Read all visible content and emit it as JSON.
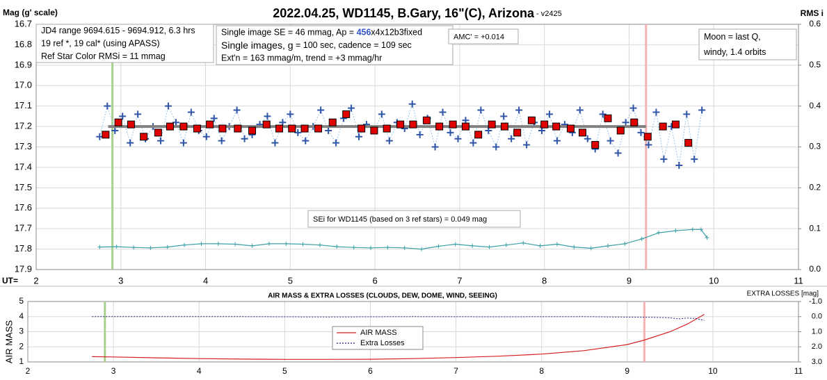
{
  "chart_data": [
    {
      "type": "line",
      "title": "2022.04.25, WD1145, B.Gary, 16\"(C), Arizona",
      "title_suffix": " - v2425",
      "y_label": "Mag (g' scale)",
      "y2_label": "RMS i",
      "x_label": "UT=",
      "xlim": [
        2,
        11
      ],
      "xticks": [
        2,
        3,
        4,
        5,
        6,
        7,
        8,
        9,
        10,
        11
      ],
      "ylim": [
        16.7,
        17.9
      ],
      "y_inverted": true,
      "yticks": [
        16.7,
        16.8,
        16.9,
        {
          "value": 17,
          "label": "17.0"
        },
        17.1,
        17.2,
        17.3,
        17.4,
        17.5,
        17.6,
        17.7,
        17.8,
        17.9
      ],
      "y2lim": [
        0,
        0.6
      ],
      "y2ticks": [
        {
          "value": 0,
          "label": "0.0"
        },
        0.1,
        0.2,
        0.3,
        0.4,
        0.5,
        0.6
      ],
      "grid": true,
      "vlines": [
        {
          "x": 2.9,
          "color": "#a9d18e"
        },
        {
          "x": 9.2,
          "color": "#f4b3b3"
        }
      ],
      "series": [
        {
          "color": "#2f55a8",
          "marker": "plus",
          "line": "dotted",
          "line_color": "#9dc3e6",
          "x": [
            2.75,
            2.84,
            2.93,
            3.02,
            3.11,
            3.2,
            3.29,
            3.38,
            3.47,
            3.56,
            3.65,
            3.74,
            3.83,
            3.92,
            4.01,
            4.1,
            4.19,
            4.28,
            4.37,
            4.46,
            4.55,
            4.64,
            4.73,
            4.82,
            4.91,
            5.0,
            5.09,
            5.18,
            5.27,
            5.36,
            5.45,
            5.54,
            5.63,
            5.72,
            5.81,
            5.9,
            5.99,
            6.08,
            6.17,
            6.26,
            6.35,
            6.44,
            6.53,
            6.62,
            6.71,
            6.8,
            6.89,
            6.98,
            7.07,
            7.16,
            7.25,
            7.34,
            7.43,
            7.52,
            7.61,
            7.7,
            7.79,
            7.88,
            7.97,
            8.06,
            8.15,
            8.24,
            8.33,
            8.42,
            8.51,
            8.6,
            8.69,
            8.78,
            8.87,
            8.96,
            9.05,
            9.14,
            9.23,
            9.32,
            9.41,
            9.5,
            9.59,
            9.68,
            9.77,
            9.86
          ],
          "values": [
            17.25,
            17.1,
            17.22,
            17.15,
            17.28,
            17.14,
            17.26,
            17.2,
            17.27,
            17.1,
            17.18,
            17.28,
            17.13,
            17.22,
            17.25,
            17.16,
            17.27,
            17.2,
            17.12,
            17.26,
            17.24,
            17.19,
            17.15,
            17.28,
            17.18,
            17.14,
            17.23,
            17.27,
            17.2,
            17.12,
            17.22,
            17.28,
            17.16,
            17.11,
            17.25,
            17.19,
            17.22,
            17.14,
            17.27,
            17.18,
            17.21,
            17.09,
            17.24,
            17.16,
            17.3,
            17.13,
            17.23,
            17.26,
            17.17,
            17.28,
            17.12,
            17.22,
            17.3,
            17.15,
            17.26,
            17.12,
            17.29,
            17.18,
            17.22,
            17.14,
            17.27,
            17.19,
            17.23,
            17.12,
            17.26,
            17.31,
            17.14,
            17.27,
            17.33,
            17.18,
            17.11,
            17.23,
            17.29,
            17.13,
            17.36,
            17.2,
            17.39,
            17.14,
            17.36,
            17.12
          ]
        },
        {
          "color": "#808080",
          "line": "solid",
          "line_width": 4,
          "x": [
            2.85,
            9.2
          ],
          "values": [
            17.2,
            17.2
          ]
        },
        {
          "color": "#e00000",
          "marker": "square",
          "x": [
            2.82,
            2.97,
            3.12,
            3.27,
            3.44,
            3.58,
            3.74,
            3.9,
            4.05,
            4.2,
            4.38,
            4.55,
            4.72,
            4.87,
            5.02,
            5.17,
            5.33,
            5.5,
            5.66,
            5.84,
            5.99,
            6.14,
            6.3,
            6.45,
            6.61,
            6.76,
            6.92,
            7.07,
            7.22,
            7.38,
            7.53,
            7.68,
            7.85,
            8.0,
            8.14,
            8.31,
            8.45,
            8.6,
            8.75,
            8.9,
            9.06,
            9.22,
            9.4,
            9.55,
            9.7
          ],
          "values": [
            17.24,
            17.18,
            17.19,
            17.25,
            17.23,
            17.2,
            17.2,
            17.21,
            17.19,
            17.21,
            17.21,
            17.22,
            17.19,
            17.21,
            17.21,
            17.21,
            17.21,
            17.18,
            17.14,
            17.21,
            17.22,
            17.21,
            17.19,
            17.19,
            17.17,
            17.2,
            17.19,
            17.2,
            17.24,
            17.19,
            17.2,
            17.23,
            17.17,
            17.19,
            17.2,
            17.21,
            17.23,
            17.29,
            17.16,
            17.22,
            17.18,
            17.25,
            17.2,
            17.19,
            17.28
          ]
        },
        {
          "color": "#3a9fa6",
          "marker": "small-plus",
          "line": "solid",
          "axis": "y2",
          "x": [
            2.75,
            2.95,
            3.15,
            3.35,
            3.55,
            3.75,
            3.95,
            4.15,
            4.35,
            4.55,
            4.75,
            4.95,
            5.15,
            5.35,
            5.55,
            5.75,
            5.95,
            6.15,
            6.35,
            6.55,
            6.75,
            6.95,
            7.15,
            7.35,
            7.55,
            7.75,
            7.95,
            8.15,
            8.35,
            8.55,
            8.75,
            8.95,
            9.15,
            9.35,
            9.55,
            9.75,
            9.85,
            9.92
          ],
          "values": [
            0.055,
            0.056,
            0.054,
            0.053,
            0.055,
            0.06,
            0.063,
            0.063,
            0.062,
            0.058,
            0.063,
            0.063,
            0.062,
            0.06,
            0.056,
            0.054,
            0.053,
            0.054,
            0.053,
            0.05,
            0.057,
            0.062,
            0.058,
            0.055,
            0.06,
            0.065,
            0.058,
            0.062,
            0.055,
            0.052,
            0.058,
            0.063,
            0.075,
            0.09,
            0.095,
            0.098,
            0.098,
            0.078
          ]
        }
      ],
      "annotations": [
        {
          "lines": [
            [
              "JD4 range 9694.615 - 9694.912, 6.3 hrs"
            ],
            [
              "19 ref *, 19 cal* (using APASS)"
            ],
            [
              "Ref Star Color RMSi = 11 mmag"
            ]
          ]
        },
        {
          "lines": [
            [
              "Single image SE = 46 mmag, Ap = ",
              "456",
              "x4x12b3fixed"
            ],
            [
              "Single images, g",
              " = 100 sec, cadence = 109 sec"
            ],
            [
              "Ext'n = 163 mmag/m, trend = +3 mmag/hr"
            ]
          ]
        },
        {
          "lines": [
            [
              "AMC' = +0.014"
            ]
          ]
        },
        {
          "lines": [
            [
              "Moon = last Q,"
            ],
            [
              "windy,  1.4 orbits"
            ]
          ]
        },
        {
          "lines": [
            [
              "SEi for WD1145 (based on 3 ref stars) = 0.049 mag"
            ]
          ]
        }
      ]
    },
    {
      "type": "line",
      "title": "AIR MASS & EXTRA LOSSES (CLOUDS, DEW, DOME, WIND, SEEING)",
      "y_label": "AIR MASS",
      "y2_label": "EXTRA LOSSES [mag]",
      "xlim": [
        2,
        11
      ],
      "xticks": [
        2,
        3,
        4,
        5,
        6,
        7,
        8,
        9,
        10,
        11
      ],
      "ylim": [
        1,
        5
      ],
      "yticks": [
        1,
        2,
        3,
        4,
        5
      ],
      "y2lim": [
        -1,
        3
      ],
      "y2_inverted": true,
      "y2ticks": [
        {
          "value": -1,
          "label": "-1.0"
        },
        {
          "value": 0,
          "label": "0.0"
        },
        {
          "value": 1,
          "label": "1.0"
        },
        {
          "value": 2,
          "label": "2.0"
        },
        {
          "value": 3,
          "label": "3.0"
        }
      ],
      "grid": true,
      "vlines": [
        {
          "x": 2.9,
          "color": "#a9d18e"
        },
        {
          "x": 9.2,
          "color": "#f4b3b3"
        }
      ],
      "series": [
        {
          "name": "AIR MASS",
          "color": "#d62020",
          "line": "solid",
          "x": [
            2.75,
            3,
            3.5,
            4,
            4.5,
            5,
            5.5,
            6,
            6.5,
            7,
            7.5,
            8,
            8.5,
            9,
            9.2,
            9.5,
            9.7,
            9.9
          ],
          "values": [
            1.35,
            1.33,
            1.27,
            1.22,
            1.19,
            1.17,
            1.17,
            1.18,
            1.22,
            1.29,
            1.38,
            1.52,
            1.75,
            2.15,
            2.45,
            3.0,
            3.5,
            4.15
          ]
        },
        {
          "name": "Extra Losses",
          "color": "#1a237e",
          "line": "dotted",
          "axis": "y2",
          "x": [
            2.75,
            3.5,
            4.5,
            5.5,
            6.5,
            7.5,
            8.5,
            9,
            9.3,
            9.5,
            9.6,
            9.7,
            9.8,
            9.9
          ],
          "values": [
            0,
            0,
            0,
            0.02,
            0,
            0.01,
            0,
            0.03,
            0.05,
            0.08,
            0.15,
            0.1,
            0.12,
            0.25
          ]
        }
      ]
    }
  ]
}
